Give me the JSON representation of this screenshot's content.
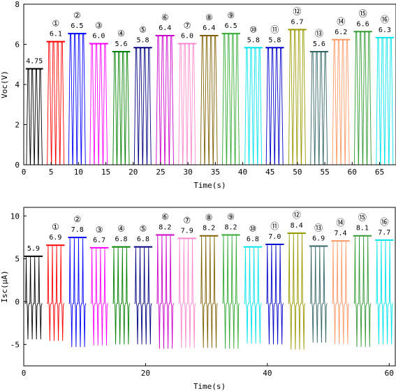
{
  "chart_data": [
    {
      "type": "line",
      "title": "",
      "xlabel": "Time(s)",
      "ylabel": "Voc(V)",
      "xlim": [
        0,
        68
      ],
      "ylim": [
        0,
        8
      ],
      "xticks": [
        0,
        5,
        10,
        15,
        20,
        25,
        30,
        35,
        40,
        45,
        50,
        55,
        60,
        65
      ],
      "yticks": [
        0,
        2,
        4,
        6,
        8
      ],
      "grid": false,
      "legend": "none",
      "baseline": 0,
      "segments": [
        {
          "label": "",
          "value_label": "4.75",
          "x_start": 0.5,
          "x_end": 3.4,
          "peak": 4.75,
          "color": "#000000"
        },
        {
          "label": "①",
          "value_label": "6.1",
          "x_start": 4.3,
          "x_end": 7.4,
          "peak": 6.1,
          "color": "#ff0000"
        },
        {
          "label": "②",
          "value_label": "6.5",
          "x_start": 8.2,
          "x_end": 11.3,
          "peak": 6.5,
          "color": "#0000ff"
        },
        {
          "label": "③",
          "value_label": "6.0",
          "x_start": 12.1,
          "x_end": 15.3,
          "peak": 6.0,
          "color": "#ff00ff"
        },
        {
          "label": "④",
          "value_label": "5.6",
          "x_start": 16.3,
          "x_end": 19.3,
          "peak": 5.6,
          "color": "#008000"
        },
        {
          "label": "⑤",
          "value_label": "5.8",
          "x_start": 20.2,
          "x_end": 23.3,
          "peak": 5.8,
          "color": "#000080"
        },
        {
          "label": "⑥",
          "value_label": "6.4",
          "x_start": 24.2,
          "x_end": 27.4,
          "peak": 6.4,
          "color": "#cc00cc"
        },
        {
          "label": "⑦",
          "value_label": "6.0",
          "x_start": 28.3,
          "x_end": 31.4,
          "peak": 6.0,
          "color": "#ff88cc"
        },
        {
          "label": "⑧",
          "value_label": "6.4",
          "x_start": 32.3,
          "x_end": 35.4,
          "peak": 6.4,
          "color": "#806000"
        },
        {
          "label": "⑨",
          "value_label": "6.5",
          "x_start": 36.3,
          "x_end": 39.4,
          "peak": 6.5,
          "color": "#33aa33"
        },
        {
          "label": "⑩",
          "value_label": "5.8",
          "x_start": 40.4,
          "x_end": 43.5,
          "peak": 5.8,
          "color": "#00e5ee"
        },
        {
          "label": "⑪",
          "value_label": "5.8",
          "x_start": 44.3,
          "x_end": 47.4,
          "peak": 5.8,
          "color": "#0000cc"
        },
        {
          "label": "⑫",
          "value_label": "6.7",
          "x_start": 48.4,
          "x_end": 51.5,
          "peak": 6.7,
          "color": "#999900"
        },
        {
          "label": "⑬",
          "value_label": "5.6",
          "x_start": 52.4,
          "x_end": 55.5,
          "peak": 5.6,
          "color": "#336666"
        },
        {
          "label": "⑭",
          "value_label": "6.2",
          "x_start": 56.4,
          "x_end": 59.5,
          "peak": 6.2,
          "color": "#ff9966"
        },
        {
          "label": "⑮",
          "value_label": "6.6",
          "x_start": 60.4,
          "x_end": 63.5,
          "peak": 6.6,
          "color": "#339933"
        },
        {
          "label": "⑯",
          "value_label": "6.3",
          "x_start": 64.4,
          "x_end": 67.5,
          "peak": 6.3,
          "color": "#00e5ee"
        }
      ]
    },
    {
      "type": "line",
      "title": "",
      "xlabel": "Time(s)",
      "ylabel": "Isc(μA)",
      "xlim": [
        0,
        61
      ],
      "ylim": [
        -7.5,
        11
      ],
      "xticks": [
        0,
        20,
        40,
        60
      ],
      "yticks": [
        -5,
        0,
        5,
        10
      ],
      "grid": false,
      "legend": "none",
      "baseline": -0.2,
      "segments": [
        {
          "label": "",
          "value_label": "5.9",
          "x_start": 0.2,
          "x_end": 3.0,
          "peak": 5.2,
          "trough": -4.4,
          "color": "#000000"
        },
        {
          "label": "①",
          "value_label": "6.9",
          "x_start": 3.8,
          "x_end": 6.6,
          "peak": 6.5,
          "trough": -4.6,
          "color": "#ff0000"
        },
        {
          "label": "②",
          "value_label": "7.8",
          "x_start": 7.4,
          "x_end": 10.2,
          "peak": 7.4,
          "trough": -5.3,
          "color": "#0000ff"
        },
        {
          "label": "③",
          "value_label": "6.7",
          "x_start": 11.0,
          "x_end": 13.8,
          "peak": 6.2,
          "trough": -5.1,
          "color": "#ff00ff"
        },
        {
          "label": "④",
          "value_label": "6.8",
          "x_start": 14.6,
          "x_end": 17.4,
          "peak": 6.3,
          "trough": -5.0,
          "color": "#008000"
        },
        {
          "label": "⑤",
          "value_label": "6.8",
          "x_start": 18.2,
          "x_end": 21.0,
          "peak": 6.3,
          "trough": -5.0,
          "color": "#000080"
        },
        {
          "label": "⑥",
          "value_label": "8.2",
          "x_start": 21.8,
          "x_end": 24.6,
          "peak": 7.7,
          "trough": -5.5,
          "color": "#cc00cc"
        },
        {
          "label": "⑦",
          "value_label": "7.9",
          "x_start": 25.4,
          "x_end": 28.2,
          "peak": 7.3,
          "trough": -5.4,
          "color": "#ff88cc"
        },
        {
          "label": "⑧",
          "value_label": "8.2",
          "x_start": 29.0,
          "x_end": 31.8,
          "peak": 7.6,
          "trough": -5.4,
          "color": "#806000"
        },
        {
          "label": "⑨",
          "value_label": "8.2",
          "x_start": 32.6,
          "x_end": 35.4,
          "peak": 7.7,
          "trough": -5.5,
          "color": "#33aa33"
        },
        {
          "label": "⑩",
          "value_label": "6.8",
          "x_start": 36.2,
          "x_end": 39.0,
          "peak": 6.3,
          "trough": -4.9,
          "color": "#00e5ee"
        },
        {
          "label": "⑪",
          "value_label": "7.0",
          "x_start": 39.8,
          "x_end": 42.6,
          "peak": 6.6,
          "trough": -5.0,
          "color": "#0000cc"
        },
        {
          "label": "⑫",
          "value_label": "8.4",
          "x_start": 43.4,
          "x_end": 46.2,
          "peak": 7.9,
          "trough": -5.6,
          "color": "#999900"
        },
        {
          "label": "⑬",
          "value_label": "6.9",
          "x_start": 47.0,
          "x_end": 49.8,
          "peak": 6.4,
          "trough": -4.8,
          "color": "#336666"
        },
        {
          "label": "⑭",
          "value_label": "7.4",
          "x_start": 50.6,
          "x_end": 53.4,
          "peak": 7.0,
          "trough": -5.0,
          "color": "#ff9966"
        },
        {
          "label": "⑮",
          "value_label": "8.1",
          "x_start": 54.2,
          "x_end": 57.0,
          "peak": 7.6,
          "trough": -5.3,
          "color": "#339933"
        },
        {
          "label": "⑯",
          "value_label": "7.7",
          "x_start": 57.8,
          "x_end": 60.6,
          "peak": 7.1,
          "trough": -5.0,
          "color": "#00e5ee"
        }
      ]
    }
  ]
}
